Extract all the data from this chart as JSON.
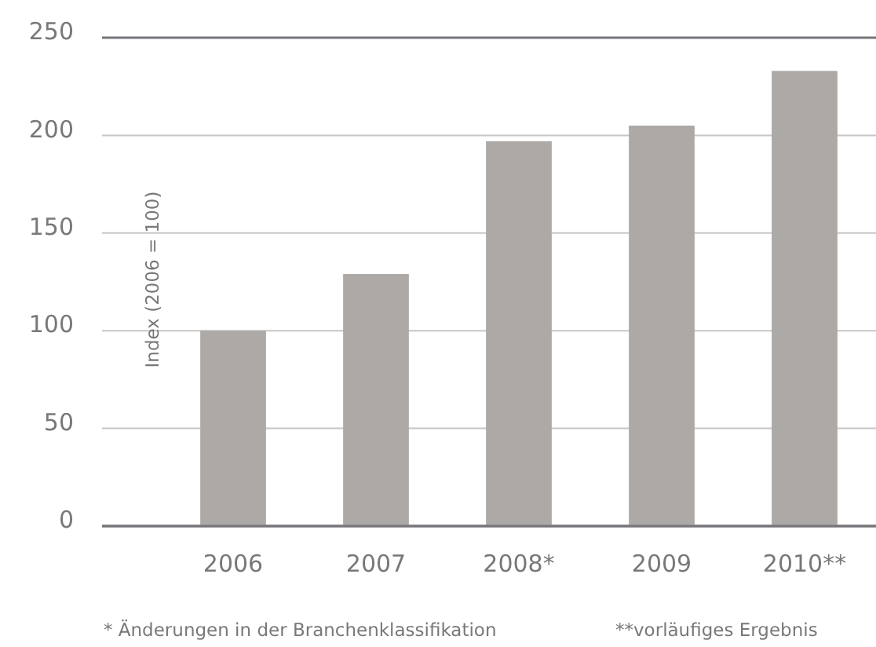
{
  "chart_data": {
    "type": "bar",
    "ylabel": "Index (2006 = 100)",
    "categories": [
      "2006",
      "2007",
      "2008*",
      "2009",
      "2010**"
    ],
    "values": [
      100,
      129,
      197,
      205,
      233
    ],
    "color": "#aca9a7",
    "ylim": [
      0,
      250
    ],
    "yticks": [
      0,
      50,
      100,
      150,
      200,
      250
    ],
    "grid": "y",
    "annotations": [
      "* Änderungen in der Branchenklassifikation",
      "**vorläufiges Ergebnis"
    ]
  }
}
